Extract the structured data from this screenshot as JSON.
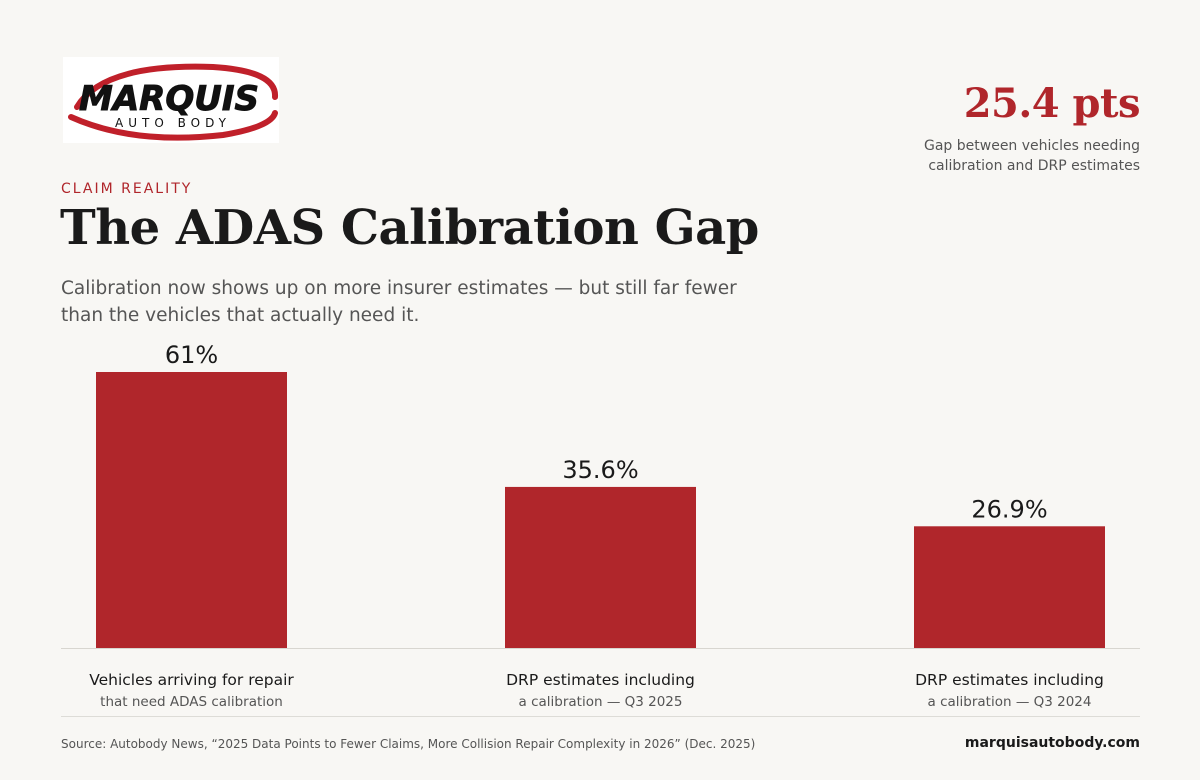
{
  "logo": {
    "wordmark": "MARQUIS",
    "tagline": "AUTO BODY"
  },
  "kpi": {
    "value": "25.4 pts",
    "caption_line1": "Gap between vehicles needing",
    "caption_line2": "calibration and DRP estimates"
  },
  "eyebrow": "CLAIM REALITY",
  "title": "The ADAS Calibration Gap",
  "subtitle": "Calibration now shows up on more insurer estimates — but still far fewer than the vehicles that actually need it.",
  "chart_data": {
    "type": "bar",
    "categories": [
      "Vehicles arriving for repair that need ADAS calibration",
      "DRP estimates including a calibration — Q3 2025",
      "DRP estimates including a calibration — Q3 2024"
    ],
    "category_lines": [
      [
        "Vehicles arriving for repair",
        "that need ADAS calibration"
      ],
      [
        "DRP estimates including",
        "a calibration — Q3 2025"
      ],
      [
        "DRP estimates including",
        "a calibration — Q3 2024"
      ]
    ],
    "values": [
      61,
      35.6,
      26.9
    ],
    "value_labels": [
      "61%",
      "35.6%",
      "26.9%"
    ],
    "unit": "%",
    "ylim": [
      0,
      61
    ],
    "grid": false,
    "bar_color": "#b0262b"
  },
  "footer": {
    "source": "Source: Autobody News, “2025 Data Points to Fewer Claims, More Collision Repair Complexity in 2026” (Dec. 2025)",
    "site": "marquisautobody.com"
  },
  "colors": {
    "accent": "#b0262b",
    "background": "#f8f7f4",
    "text": "#1a1a1a",
    "muted": "#555555"
  }
}
